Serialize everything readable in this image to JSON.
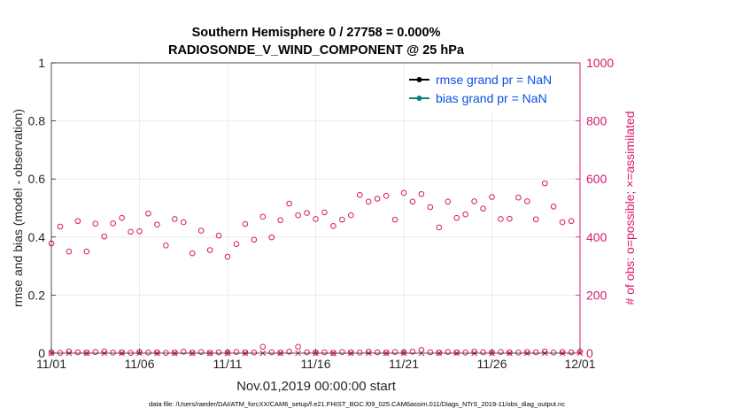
{
  "chart_data": {
    "type": "scatter",
    "title_line1": "Southern Hemisphere 0 / 27758 = 0.000%",
    "title_line2": "RADIOSONDE_V_WIND_COMPONENT @ 25 hPa",
    "ylabel_left": "rmse and bias (model - observation)",
    "ylabel_right": "# of obs: o=possible; ×=assimilated",
    "xlabel": "Nov.01,2019 00:00:00 start",
    "footnote": "data file: /Users/raeder/DAI/ATM_forcXX/CAM6_setup/f.e21.FHIST_BGC.f09_025.CAM6assim.011/Diags_NTrS_2019-11/obs_diag_output.nc",
    "x_range_days": [
      0,
      30
    ],
    "y_left": {
      "range": [
        0,
        1
      ],
      "ticks": [
        "0",
        "0.2",
        "0.4",
        "0.6",
        "0.8",
        "1"
      ]
    },
    "y_right": {
      "range": [
        0,
        1000
      ],
      "ticks": [
        "0",
        "200",
        "400",
        "600",
        "800",
        "1000"
      ]
    },
    "x_ticks": [
      {
        "day": 0,
        "label": "11/01"
      },
      {
        "day": 5,
        "label": "11/06"
      },
      {
        "day": 10,
        "label": "11/11"
      },
      {
        "day": 15,
        "label": "11/16"
      },
      {
        "day": 20,
        "label": "11/21"
      },
      {
        "day": 25,
        "label": "11/26"
      },
      {
        "day": 30,
        "label": "12/01"
      }
    ],
    "legend": [
      {
        "label": "rmse grand pr = NaN",
        "color": "#000000"
      },
      {
        "label": "bias grand pr = NaN",
        "color": "#0f8080"
      }
    ],
    "series": [
      {
        "name": "obs possible",
        "marker": "circle",
        "color": "#d6186b",
        "x": [
          0,
          0.5,
          1,
          1.5,
          2,
          2.5,
          3,
          3.5,
          4,
          4.5,
          5,
          5.5,
          6,
          6.5,
          7,
          7.5,
          8,
          8.5,
          9,
          9.5,
          10,
          10.5,
          11,
          11.5,
          12,
          12.5,
          13,
          13.5,
          14,
          14.5,
          15,
          15.5,
          16,
          16.5,
          17,
          17.5,
          18,
          18.5,
          19,
          19.5,
          20,
          20.5,
          21,
          21.5,
          22,
          22.5,
          23,
          23.5,
          24,
          24.5,
          25,
          25.5,
          26,
          26.5,
          27,
          27.5,
          28,
          28.5,
          29,
          29.5
        ],
        "values": [
          378,
          436,
          350,
          455,
          350,
          446,
          402,
          447,
          466,
          418,
          420,
          481,
          443,
          371,
          462,
          451,
          344,
          422,
          355,
          405,
          332,
          376,
          445,
          391,
          470,
          399,
          458,
          515,
          475,
          483,
          462,
          485,
          438,
          460,
          475,
          545,
          522,
          532,
          542,
          460,
          552,
          522,
          548,
          503,
          433,
          522,
          466,
          478,
          523,
          498,
          538,
          462,
          463,
          536,
          523,
          461,
          585,
          505,
          451,
          455
        ]
      },
      {
        "name": "obs possible (low)",
        "marker": "circle",
        "color": "#d6186b",
        "x": [
          0,
          0.5,
          1,
          1.5,
          2,
          2.5,
          3,
          3.5,
          4,
          4.5,
          5,
          5.5,
          6,
          6.5,
          7,
          7.5,
          8,
          8.5,
          9,
          9.5,
          10,
          10.5,
          11,
          11.5,
          12,
          12.5,
          13,
          13.5,
          14,
          14.5,
          15,
          15.5,
          16,
          16.5,
          17,
          17.5,
          18,
          18.5,
          19,
          19.5,
          20,
          20.5,
          21,
          21.5,
          22,
          22.5,
          23,
          23.5,
          24,
          24.5,
          25,
          25.5,
          26,
          26.5,
          27,
          27.5,
          28,
          28.5,
          29,
          29.5,
          30
        ],
        "values": [
          2,
          1,
          6,
          3,
          2,
          4,
          6,
          2,
          3,
          1,
          4,
          2,
          3,
          1,
          2,
          5,
          2,
          4,
          1,
          3,
          2,
          4,
          3,
          2,
          22,
          3,
          2,
          5,
          22,
          3,
          2,
          3,
          1,
          4,
          3,
          2,
          5,
          3,
          2,
          4,
          3,
          5,
          11,
          3,
          2,
          4,
          3,
          2,
          5,
          3,
          2,
          4,
          3,
          2,
          4,
          3,
          6,
          2,
          4,
          3,
          5
        ]
      },
      {
        "name": "obs assimilated",
        "marker": "x",
        "color": "#d6186b",
        "x": [
          0,
          1,
          2,
          3,
          4,
          5,
          6,
          7,
          8,
          9,
          10,
          11,
          12,
          13,
          14,
          15,
          16,
          17,
          18,
          19,
          20,
          21,
          22,
          23,
          24,
          25,
          26,
          27,
          28,
          29,
          30
        ],
        "values": [
          0,
          0,
          0,
          0,
          0,
          0,
          0,
          0,
          0,
          0,
          0,
          0,
          0,
          0,
          0,
          0,
          0,
          0,
          0,
          0,
          0,
          0,
          0,
          0,
          0,
          0,
          0,
          0,
          0,
          0,
          0
        ]
      }
    ]
  }
}
